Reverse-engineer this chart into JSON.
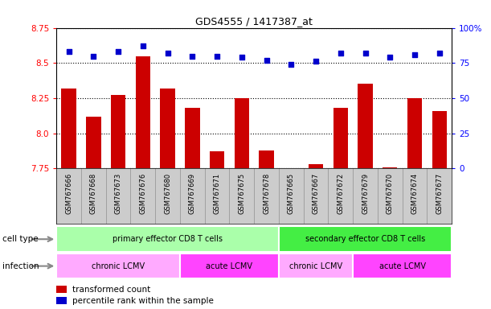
{
  "title": "GDS4555 / 1417387_at",
  "samples": [
    "GSM767666",
    "GSM767668",
    "GSM767673",
    "GSM767676",
    "GSM767680",
    "GSM767669",
    "GSM767671",
    "GSM767675",
    "GSM767678",
    "GSM767665",
    "GSM767667",
    "GSM767672",
    "GSM767679",
    "GSM767670",
    "GSM767674",
    "GSM767677"
  ],
  "transformed_count": [
    8.32,
    8.12,
    8.27,
    8.55,
    8.32,
    8.18,
    7.87,
    8.25,
    7.88,
    7.75,
    7.78,
    8.18,
    8.35,
    7.76,
    8.25,
    8.16
  ],
  "percentile_rank": [
    83,
    80,
    83,
    87,
    82,
    80,
    80,
    79,
    77,
    74,
    76,
    82,
    82,
    79,
    81,
    82
  ],
  "ylim_left": [
    7.75,
    8.75
  ],
  "ylim_right": [
    0,
    100
  ],
  "yticks_left": [
    7.75,
    8.0,
    8.25,
    8.5,
    8.75
  ],
  "yticks_right": [
    0,
    25,
    50,
    75,
    100
  ],
  "bar_color": "#cc0000",
  "dot_color": "#0000cc",
  "cell_type_groups": [
    {
      "label": "primary effector CD8 T cells",
      "start": 0,
      "end": 8,
      "color": "#aaffaa"
    },
    {
      "label": "secondary effector CD8 T cells",
      "start": 9,
      "end": 15,
      "color": "#44ee44"
    }
  ],
  "infection_groups": [
    {
      "label": "chronic LCMV",
      "start": 0,
      "end": 4,
      "color": "#ffaaff"
    },
    {
      "label": "acute LCMV",
      "start": 5,
      "end": 8,
      "color": "#ff44ff"
    },
    {
      "label": "chronic LCMV",
      "start": 9,
      "end": 11,
      "color": "#ffaaff"
    },
    {
      "label": "acute LCMV",
      "start": 12,
      "end": 15,
      "color": "#ff44ff"
    }
  ],
  "legend_bar_label": "transformed count",
  "legend_dot_label": "percentile rank within the sample",
  "cell_type_label": "cell type",
  "infection_label": "infection"
}
